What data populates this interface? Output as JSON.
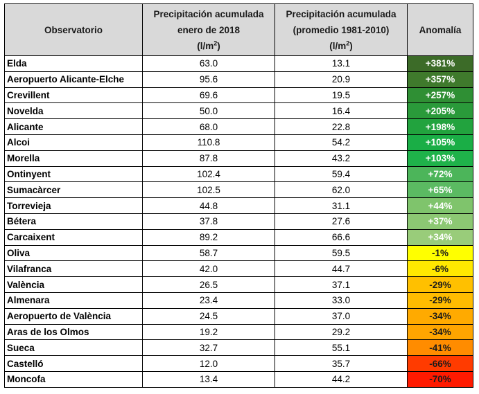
{
  "headers": {
    "observatorio": "Observatorio",
    "jan_line1": "Precipitación acumulada",
    "jan_line2": "enero de 2018",
    "avg_line1": "Precipitación acumulada",
    "avg_line2": "(promedio 1981-2010)",
    "unit_prefix": "(l/m",
    "unit_exp": "2",
    "unit_suffix": ")",
    "anomalia": "Anomalía"
  },
  "rows": [
    {
      "name": "Elda",
      "jan": "63.0",
      "avg": "13.1",
      "anomaly": "+381%",
      "color": "#3c6b28"
    },
    {
      "name": "Aeropuerto Alicante-Elche",
      "jan": "95.6",
      "avg": "20.9",
      "anomaly": "+357%",
      "color": "#3f7a2c"
    },
    {
      "name": "Crevillent",
      "jan": "69.6",
      "avg": "19.5",
      "anomaly": "+257%",
      "color": "#2f8f34"
    },
    {
      "name": "Novelda",
      "jan": "50.0",
      "avg": "16.4",
      "anomaly": "+205%",
      "color": "#2a9a3a"
    },
    {
      "name": "Alicante",
      "jan": "68.0",
      "avg": "22.8",
      "anomaly": "+198%",
      "color": "#22a33e"
    },
    {
      "name": "Alcoi",
      "jan": "110.8",
      "avg": "54.2",
      "anomaly": "+105%",
      "color": "#1aae46"
    },
    {
      "name": "Morella",
      "jan": "87.8",
      "avg": "43.2",
      "anomaly": "+103%",
      "color": "#1fb24a"
    },
    {
      "name": "Ontinyent",
      "jan": "102.4",
      "avg": "59.4",
      "anomaly": "+72%",
      "color": "#4cb55a"
    },
    {
      "name": "Sumacàrcer",
      "jan": "102.5",
      "avg": "62.0",
      "anomaly": "+65%",
      "color": "#5bba62"
    },
    {
      "name": "Torrevieja",
      "jan": "44.8",
      "avg": "31.1",
      "anomaly": "+44%",
      "color": "#7fc46c"
    },
    {
      "name": "Bétera",
      "jan": "37.8",
      "avg": "27.6",
      "anomaly": "+37%",
      "color": "#8cc873"
    },
    {
      "name": "Carcaixent",
      "jan": "89.2",
      "avg": "66.6",
      "anomaly": "+34%",
      "color": "#99cc7a"
    },
    {
      "name": "Oliva",
      "jan": "58.7",
      "avg": "59.5",
      "anomaly": "-1%",
      "color": "#ffff00"
    },
    {
      "name": "Vilafranca",
      "jan": "42.0",
      "avg": "44.7",
      "anomaly": "-6%",
      "color": "#ffe800"
    },
    {
      "name": "València",
      "jan": "26.5",
      "avg": "37.1",
      "anomaly": "-29%",
      "color": "#ffc000"
    },
    {
      "name": "Almenara",
      "jan": "23.4",
      "avg": "33.0",
      "anomaly": "-29%",
      "color": "#ffbc00"
    },
    {
      "name": "Aeropuerto de València",
      "jan": "24.5",
      "avg": "37.0",
      "anomaly": "-34%",
      "color": "#ffaa00"
    },
    {
      "name": "Aras de los Olmos",
      "jan": "19.2",
      "avg": "29.2",
      "anomaly": "-34%",
      "color": "#ffa500"
    },
    {
      "name": "Sueca",
      "jan": "32.7",
      "avg": "55.1",
      "anomaly": "-41%",
      "color": "#ff8c00"
    },
    {
      "name": "Castelló",
      "jan": "12.0",
      "avg": "35.7",
      "anomaly": "-66%",
      "color": "#ff3b00"
    },
    {
      "name": "Moncofa",
      "jan": "13.4",
      "avg": "44.2",
      "anomaly": "-70%",
      "color": "#ff1a00"
    }
  ]
}
